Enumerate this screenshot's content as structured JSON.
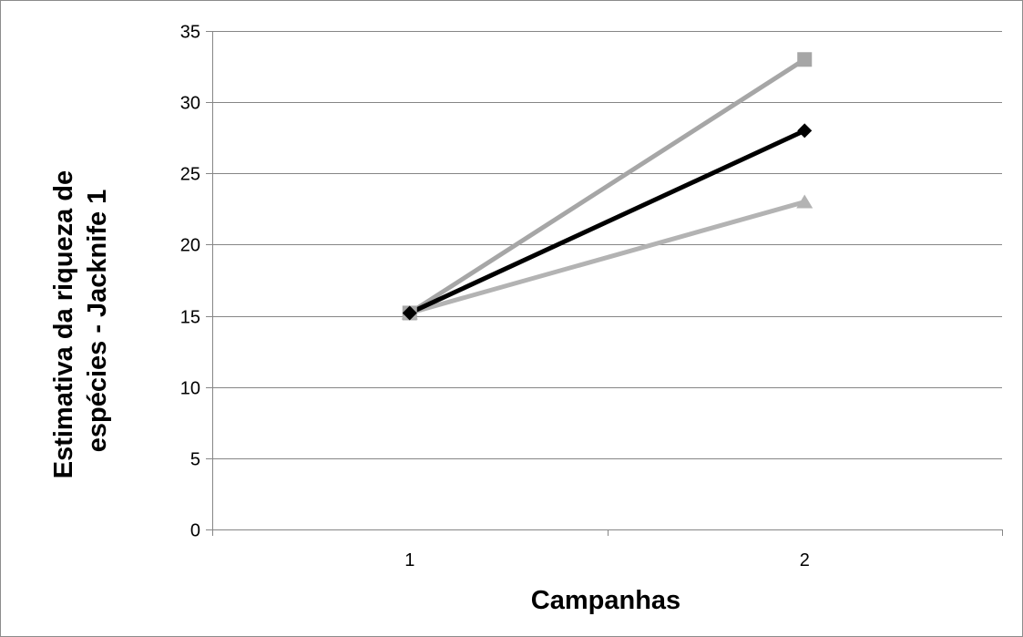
{
  "chart_data": {
    "type": "line",
    "title": "",
    "xlabel": "Campanhas",
    "ylabel_lines": [
      "Estimativa da riqueza de",
      "espécies - Jacknife 1"
    ],
    "categories": [
      "1",
      "2"
    ],
    "ylim": [
      0,
      35
    ],
    "yticks": [
      0,
      5,
      10,
      15,
      20,
      25,
      30,
      35
    ],
    "grid": true,
    "legend": "none",
    "series": [
      {
        "values": [
          15.2,
          33
        ],
        "color": "#a6a6a6",
        "marker": "square"
      },
      {
        "values": [
          15.2,
          28
        ],
        "color": "#000000",
        "marker": "diamond"
      },
      {
        "values": [
          15.2,
          23
        ],
        "color": "#b3b3b3",
        "marker": "triangle"
      }
    ]
  },
  "colors": {
    "grid": "#868686",
    "axis": "#868686",
    "border": "#8c8c8c"
  }
}
